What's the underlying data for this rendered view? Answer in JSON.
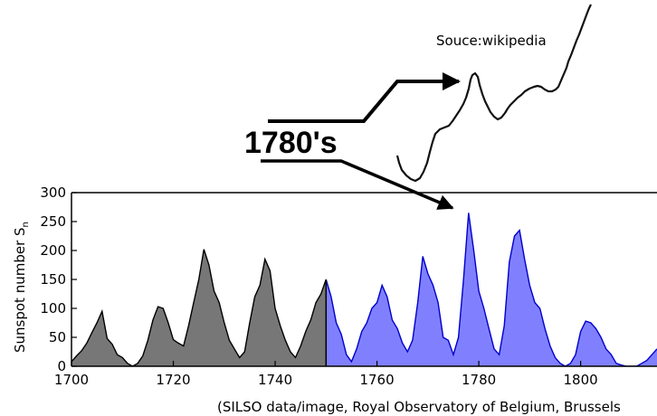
{
  "annotations": {
    "source_top": "Souce:wikipedia",
    "decade_label": "1780's",
    "source_bottom": "(SILSO data/image, Royal Observatory of Belgium, Brussels"
  },
  "chart_data": {
    "type": "area",
    "title": "",
    "xlabel": "",
    "ylabel": "Sunspot number S",
    "ylabel_subscript": "n",
    "xlim": [
      1700,
      1815
    ],
    "ylim": [
      0,
      300
    ],
    "x_ticks": [
      1700,
      1720,
      1740,
      1760,
      1780,
      1800
    ],
    "y_ticks": [
      0,
      50,
      100,
      150,
      200,
      250,
      300
    ],
    "series": [
      {
        "color": "#777777",
        "outline": "#000000",
        "x": [
          1700,
          1701,
          1702,
          1703,
          1704,
          1705,
          1706,
          1707,
          1708,
          1709,
          1710,
          1711,
          1712,
          1713,
          1714,
          1715,
          1716,
          1717,
          1718,
          1719,
          1720,
          1721,
          1722,
          1723,
          1724,
          1725,
          1726,
          1727,
          1728,
          1729,
          1730,
          1731,
          1732,
          1733,
          1734,
          1735,
          1736,
          1737,
          1738,
          1739,
          1740,
          1741,
          1742,
          1743,
          1744,
          1745,
          1746,
          1747,
          1748,
          1749,
          1750
        ],
        "values": [
          8,
          18,
          27,
          40,
          58,
          75,
          95,
          48,
          38,
          20,
          15,
          5,
          0,
          5,
          18,
          45,
          80,
          103,
          100,
          75,
          46,
          40,
          35,
          70,
          110,
          150,
          202,
          175,
          130,
          110,
          75,
          45,
          30,
          15,
          25,
          75,
          120,
          140,
          185,
          165,
          100,
          70,
          45,
          25,
          15,
          35,
          60,
          80,
          110,
          125,
          150
        ]
      },
      {
        "color": "#8080ff",
        "outline": "#0000cc",
        "x": [
          1750,
          1751,
          1752,
          1753,
          1754,
          1755,
          1756,
          1757,
          1758,
          1759,
          1760,
          1761,
          1762,
          1763,
          1764,
          1765,
          1766,
          1767,
          1768,
          1769,
          1770,
          1771,
          1772,
          1773,
          1774,
          1775,
          1776,
          1777,
          1778,
          1779,
          1780,
          1781,
          1782,
          1783,
          1784,
          1785,
          1786,
          1787,
          1788,
          1789,
          1790,
          1791,
          1792,
          1793,
          1794,
          1795,
          1796,
          1797,
          1798,
          1799,
          1800,
          1801,
          1802,
          1803,
          1804,
          1805,
          1806,
          1807,
          1808,
          1809,
          1810,
          1811,
          1812,
          1813,
          1814,
          1815
        ],
        "values": [
          150,
          120,
          75,
          55,
          20,
          8,
          30,
          60,
          75,
          100,
          110,
          140,
          120,
          80,
          65,
          40,
          25,
          45,
          110,
          190,
          160,
          140,
          110,
          50,
          45,
          20,
          50,
          150,
          265,
          200,
          130,
          100,
          65,
          30,
          20,
          70,
          180,
          225,
          235,
          185,
          140,
          110,
          100,
          65,
          35,
          15,
          5,
          0,
          5,
          20,
          60,
          78,
          75,
          65,
          50,
          30,
          20,
          5,
          2,
          0,
          0,
          0,
          5,
          10,
          20,
          30
        ]
      }
    ]
  }
}
